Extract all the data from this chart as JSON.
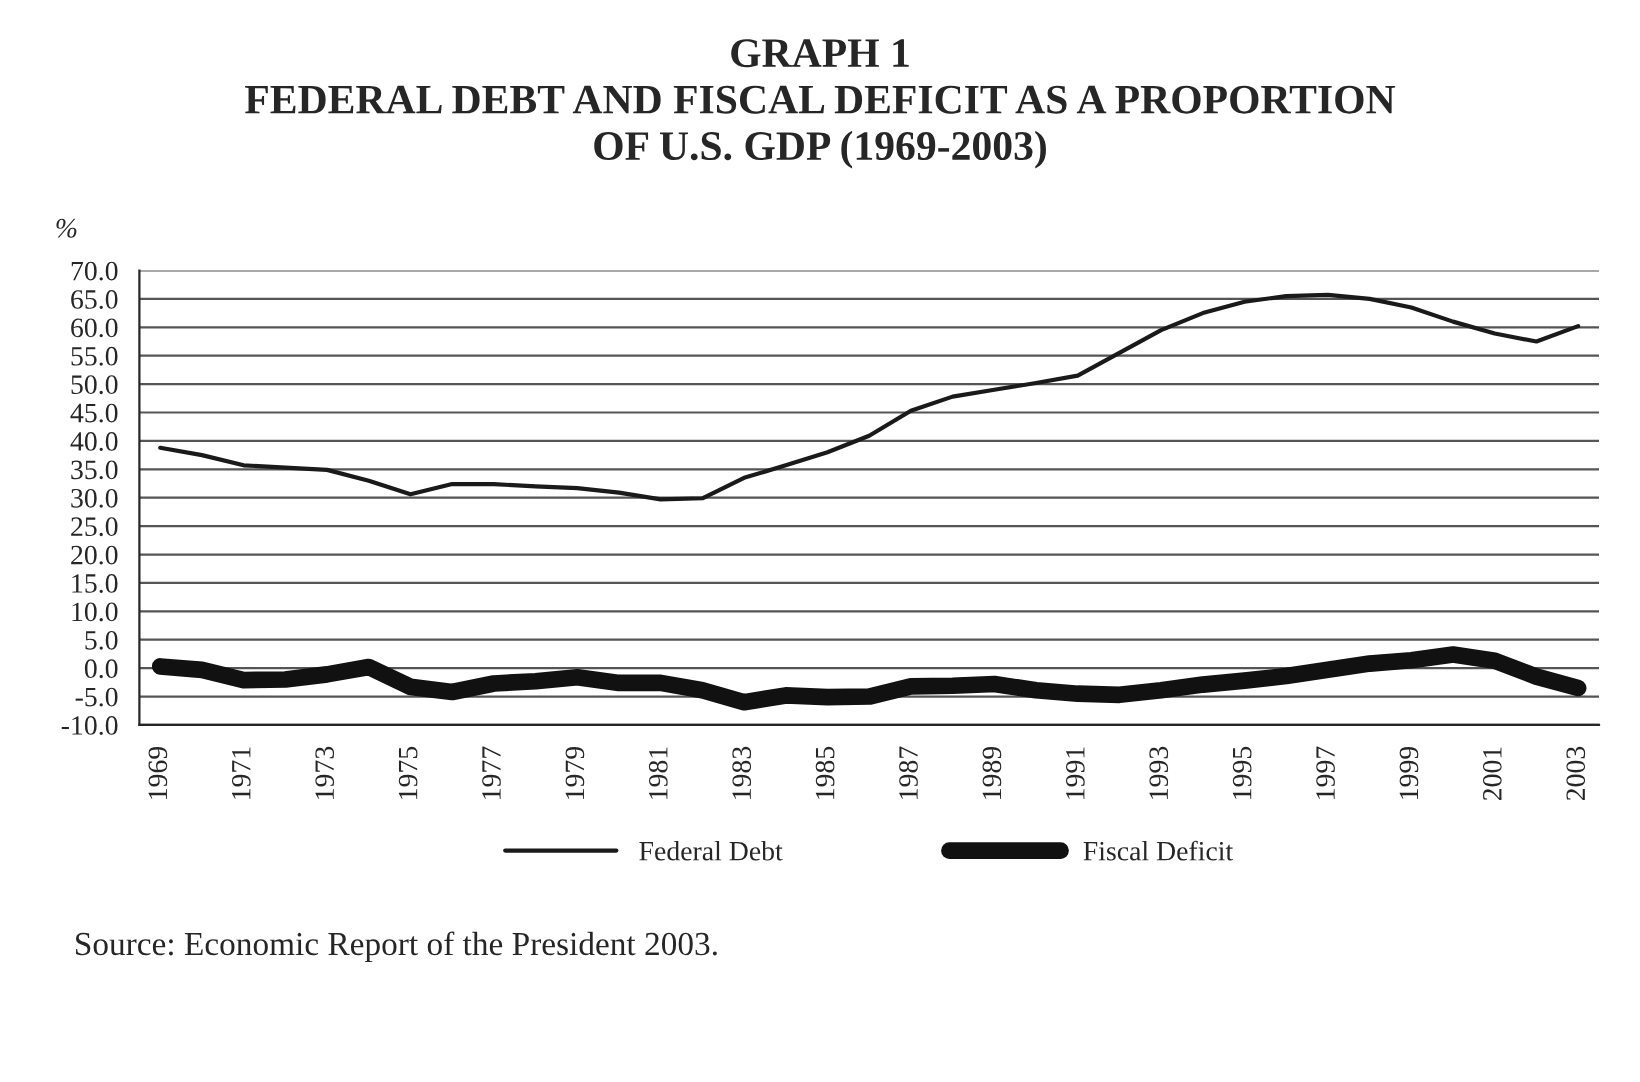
{
  "chart_data": {
    "type": "line",
    "title": "GRAPH 1\nFEDERAL DEBT AND FISCAL DEFICIT AS A PROPORTION\nOF U.S. GDP (1969-2003)",
    "ylabel": "%",
    "categories": [
      "1969",
      null,
      "1971",
      null,
      "1973",
      null,
      "1975",
      null,
      "1977",
      null,
      "1979",
      null,
      "1981",
      null,
      "1983",
      null,
      "1985",
      null,
      "1987",
      null,
      "1989",
      null,
      "1991",
      null,
      "1993",
      null,
      "1995",
      null,
      "1997",
      null,
      "1999",
      null,
      "2001",
      null,
      "2003"
    ],
    "series": [
      {
        "name": "Federal Debt",
        "color": "#1a1a1a",
        "values": [
          38.8,
          37.5,
          35.7,
          35.3,
          34.9,
          33.0,
          30.6,
          32.4,
          32.4,
          32.0,
          31.7,
          30.9,
          29.7,
          29.9,
          33.5,
          35.7,
          38.0,
          40.9,
          45.3,
          47.8,
          49.0,
          50.2,
          51.5,
          55.5,
          59.5,
          62.5,
          64.5,
          65.5,
          65.7,
          65.0,
          63.5,
          61.0,
          58.9,
          57.5,
          60.2
        ]
      },
      {
        "name": "Fiscal Deficit",
        "color": "#111111",
        "values": [
          0.3,
          -0.3,
          -2.1,
          -2.0,
          -1.1,
          0.2,
          -3.3,
          -4.2,
          -2.7,
          -2.3,
          -1.6,
          -2.6,
          -2.6,
          -3.9,
          -6.0,
          -4.8,
          -5.1,
          -5.0,
          -3.2,
          -3.1,
          -2.8,
          -3.9,
          -4.5,
          -4.7,
          -3.9,
          -2.9,
          -2.2,
          -1.4,
          -0.3,
          0.8,
          1.4,
          2.4,
          1.3,
          -1.5,
          -3.5
        ]
      }
    ],
    "ylim": [
      -10,
      70
    ],
    "yticks": [
      {
        "value": -10,
        "label": "-10.0"
      },
      {
        "value": -5,
        "label": "-5.0"
      },
      {
        "value": 0,
        "label": "0.0"
      },
      {
        "value": 5,
        "label": "5.0"
      },
      {
        "value": 10,
        "label": "10.0"
      },
      {
        "value": 15,
        "label": "15.0"
      },
      {
        "value": 20,
        "label": "20.0"
      },
      {
        "value": 25,
        "label": "25.0"
      },
      {
        "value": 30,
        "label": "30.0"
      },
      {
        "value": 35,
        "label": "35.0"
      },
      {
        "value": 40,
        "label": "40.0"
      },
      {
        "value": 45,
        "label": "45.0"
      },
      {
        "value": 50,
        "label": "50.0"
      },
      {
        "value": 55,
        "label": "55.0"
      },
      {
        "value": 60,
        "label": "60.0"
      },
      {
        "value": 65,
        "label": "65.0"
      },
      {
        "value": 70,
        "label": "70.0"
      }
    ],
    "grid": "y",
    "legend": "bottom",
    "annotations": [
      "Source: Economic Report of the President 2003."
    ]
  }
}
